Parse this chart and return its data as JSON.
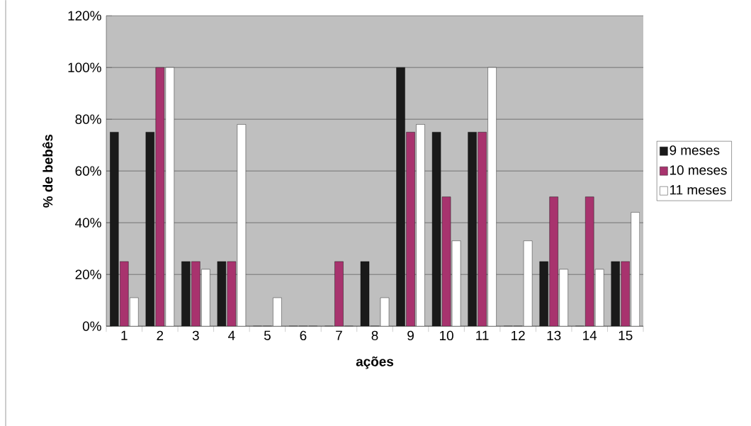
{
  "chart_data": {
    "type": "bar",
    "xlabel": "ações",
    "ylabel": "% de bebês",
    "categories": [
      "1",
      "2",
      "3",
      "4",
      "5",
      "6",
      "7",
      "8",
      "9",
      "10",
      "11",
      "12",
      "13",
      "14",
      "15"
    ],
    "series": [
      {
        "name": "9 meses",
        "color": "#1a1a1a",
        "values": [
          75,
          75,
          25,
          25,
          0,
          0,
          0,
          25,
          100,
          75,
          75,
          0,
          25,
          0,
          25
        ]
      },
      {
        "name": "10 meses",
        "color": "#a8336e",
        "values": [
          25,
          100,
          25,
          25,
          0,
          0,
          25,
          0,
          75,
          50,
          75,
          0,
          50,
          50,
          25
        ]
      },
      {
        "name": "11 meses",
        "color": "#ffffff",
        "values": [
          11,
          100,
          22,
          78,
          11,
          0,
          0,
          11,
          78,
          33,
          100,
          33,
          22,
          22,
          44
        ]
      }
    ],
    "ylim": [
      0,
      120
    ],
    "yticks": [
      {
        "value": 0,
        "label": "0%"
      },
      {
        "value": 20,
        "label": "20%"
      },
      {
        "value": 40,
        "label": "40%"
      },
      {
        "value": 60,
        "label": "60%"
      },
      {
        "value": 80,
        "label": "80%"
      },
      {
        "value": 100,
        "label": "100%"
      },
      {
        "value": 120,
        "label": "120%"
      }
    ],
    "grid": "y",
    "legend": "right"
  }
}
